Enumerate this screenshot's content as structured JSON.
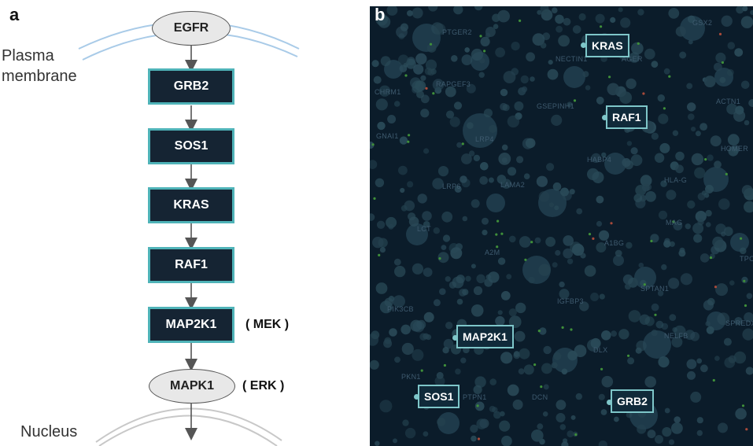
{
  "panel_a": {
    "label": "a",
    "plasma_membrane": "Plasma\nmembrane",
    "nucleus": "Nucleus",
    "egfr": "EGFR",
    "grb2": "GRB2",
    "sos1": "SOS1",
    "kras": "KRAS",
    "raf1": "RAF1",
    "map2k1": "MAP2K1",
    "mek": "( MEK )",
    "mapk1": "MAPK1",
    "erk": "( ERK )"
  },
  "panel_b": {
    "label": "b",
    "highlighted": {
      "kras": "KRAS",
      "raf1": "RAF1",
      "map2k1": "MAP2K1",
      "sos1": "SOS1",
      "grb2": "GRB2"
    },
    "background_labels": [
      "PTGER2",
      "GSX2",
      "NECTIN1",
      "AGER",
      "RAPGEF3",
      "CHRM1",
      "GSEPINH1",
      "ACTN1",
      "GNAI1",
      "LRP4",
      "HOMER",
      "HABP4",
      "LRP6",
      "LAMA2",
      "HLA-G",
      "LCT",
      "MAG",
      "A1BG",
      "A2M",
      "TPO",
      "PIK3CB",
      "IGFBP3",
      "SPTAN1",
      "SPREDX",
      "NELFB",
      "DLX",
      "PKN1",
      "PTPN1",
      "DCN"
    ]
  },
  "colors": {
    "box_fill": "#152433",
    "box_border": "#4fb3b8",
    "map_background": "#0b1c2a",
    "membrane_blue": "#a9cbe8",
    "nucleus_gray": "#c8c8c8"
  }
}
